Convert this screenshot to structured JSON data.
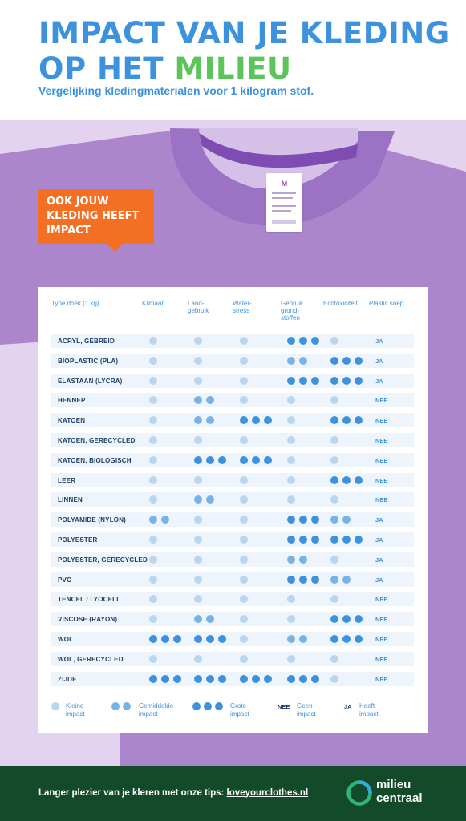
{
  "header": {
    "title_line1": "IMPACT VAN JE KLEDING",
    "title_line2_prefix": "OP HET ",
    "title_line2_highlight": "MILIEU",
    "subtitle": "Vergelijking kledingmaterialen voor 1 kilogram stof."
  },
  "callout": {
    "line1": "OOK JOUW",
    "line2": "KLEDING HEEFT",
    "line3": "IMPACT"
  },
  "label_tag": {
    "mark": "M"
  },
  "table": {
    "headers": {
      "type": "Type doek (1 kg)",
      "klimaat": "Klimaat",
      "land_1": "Land-",
      "land_2": "gebruik",
      "water_1": "Water-",
      "water_2": "stress",
      "grond_1": "Gebruik",
      "grond_2": "grond-",
      "grond_3": "stoffen",
      "eco": "Ecotoxiciteit",
      "plastic": "Plastic soep"
    },
    "rows": [
      {
        "name": "ACRYL, GEBREID",
        "klimaat": 1,
        "land": 1,
        "water": 1,
        "grond": 3,
        "eco": 1,
        "plastic": "JA"
      },
      {
        "name": "BIOPLASTIC (PLA)",
        "klimaat": 1,
        "land": 1,
        "water": 1,
        "grond": 2,
        "eco": 3,
        "plastic": "JA"
      },
      {
        "name": "ELASTAAN (LYCRA)",
        "klimaat": 1,
        "land": 1,
        "water": 1,
        "grond": 3,
        "eco": 3,
        "plastic": "JA"
      },
      {
        "name": "HENNEP",
        "klimaat": 1,
        "land": 2,
        "water": 1,
        "grond": 1,
        "eco": 1,
        "plastic": "NEE"
      },
      {
        "name": "KATOEN",
        "klimaat": 1,
        "land": 2,
        "water": 3,
        "grond": 1,
        "eco": 3,
        "plastic": "NEE"
      },
      {
        "name": "KATOEN, GERECYCLED",
        "klimaat": 1,
        "land": 1,
        "water": 1,
        "grond": 1,
        "eco": 1,
        "plastic": "NEE"
      },
      {
        "name": "KATOEN, BIOLOGISCH",
        "klimaat": 1,
        "land": 3,
        "water": 3,
        "grond": 1,
        "eco": 1,
        "plastic": "NEE"
      },
      {
        "name": "LEER",
        "klimaat": 1,
        "land": 1,
        "water": 1,
        "grond": 1,
        "eco": 3,
        "plastic": "NEE"
      },
      {
        "name": "LINNEN",
        "klimaat": 1,
        "land": 2,
        "water": 1,
        "grond": 1,
        "eco": 1,
        "plastic": "NEE"
      },
      {
        "name": "POLYAMIDE (NYLON)",
        "klimaat": 2,
        "land": 1,
        "water": 1,
        "grond": 3,
        "eco": 2,
        "plastic": "JA"
      },
      {
        "name": "POLYESTER",
        "klimaat": 1,
        "land": 1,
        "water": 1,
        "grond": 3,
        "eco": 3,
        "plastic": "JA"
      },
      {
        "name": "POLYESTER, GERECYCLED",
        "klimaat": 1,
        "land": 1,
        "water": 1,
        "grond": 2,
        "eco": 1,
        "plastic": "JA"
      },
      {
        "name": "PVC",
        "klimaat": 1,
        "land": 1,
        "water": 1,
        "grond": 3,
        "eco": 2,
        "plastic": "JA"
      },
      {
        "name": "TENCEL / LYOCELL",
        "klimaat": 1,
        "land": 1,
        "water": 1,
        "grond": 1,
        "eco": 1,
        "plastic": "NEE"
      },
      {
        "name": "VISCOSE (RAYON)",
        "klimaat": 1,
        "land": 2,
        "water": 1,
        "grond": 1,
        "eco": 3,
        "plastic": "NEE"
      },
      {
        "name": "WOL",
        "klimaat": 3,
        "land": 3,
        "water": 1,
        "grond": 2,
        "eco": 3,
        "plastic": "NEE"
      },
      {
        "name": "WOL, GERECYCLED",
        "klimaat": 1,
        "land": 1,
        "water": 1,
        "grond": 1,
        "eco": 1,
        "plastic": "NEE"
      },
      {
        "name": "ZIJDE",
        "klimaat": 3,
        "land": 3,
        "water": 3,
        "grond": 3,
        "eco": 1,
        "plastic": "NEE"
      }
    ]
  },
  "legend": {
    "small_1": "Kleine",
    "small_2": "impact",
    "medium_1": "Gemiddelde",
    "medium_2": "impact",
    "large_1": "Grote",
    "large_2": "impact",
    "nee_key": "NEE",
    "nee_1": "Geen",
    "nee_2": "impact",
    "ja_key": "JA",
    "ja_1": "Heeft",
    "ja_2": "impact"
  },
  "colors": {
    "light_dot": "#b9d6f0",
    "mid_dot": "#79b3e6",
    "dark_dot": "#3d92de",
    "brand_blue": "#3d92de",
    "brand_green": "#5cc45b",
    "orange": "#f36f23",
    "shirt_purple": "#ab86cc"
  },
  "footer": {
    "text": "Langer plezier van je kleren met onze tips: ",
    "link": "loveyourclothes.nl",
    "logo_line1": "milieu",
    "logo_line2": "centraal"
  }
}
